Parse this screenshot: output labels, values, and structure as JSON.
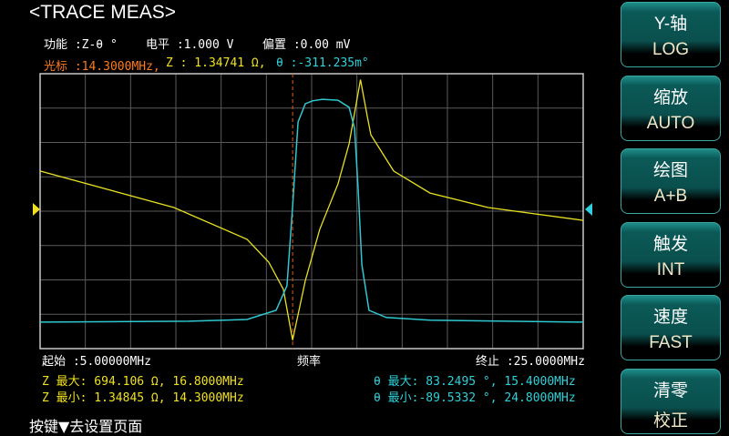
{
  "title": "<TRACE MEAS>",
  "status": {
    "function": "功能 :Z-θ °",
    "level": "电平 :1.000 V",
    "bias": "偏置 :0.00 mV"
  },
  "cursor": {
    "freq": "光标 :14.3000MHz,",
    "z": "Z : 1.34741 Ω,",
    "theta": "θ :-311.235m°"
  },
  "axis": {
    "start": "起始 :5.00000MHz",
    "label": "频率",
    "stop": "终止 :25.0000MHz"
  },
  "stats": {
    "z_max": "Z 最大: 694.106 Ω, 16.8000MHz",
    "z_min": "Z 最小: 1.34845 Ω, 14.3000MHz",
    "theta_max": "θ 最大: 83.2495 °, 15.4000MHz",
    "theta_min": "θ 最小:-89.5332 °, 24.8000MHz"
  },
  "hint": "按键▼去设置页面",
  "buttons": [
    {
      "label": "Y-轴",
      "value": "LOG"
    },
    {
      "label": "缩放",
      "value": "AUTO"
    },
    {
      "label": "绘图",
      "value": "A+B"
    },
    {
      "label": "触发",
      "value": "INT"
    },
    {
      "label": "速度",
      "value": "FAST"
    },
    {
      "label": "清零",
      "value": "校正"
    }
  ],
  "colors": {
    "z": "#e8e020",
    "theta": "#30c8d0",
    "cursor": "#e05818",
    "grid": "#5a5a5a",
    "status": "#ffffff",
    "cursor_freq": "#ff7a1a"
  },
  "chart_data": {
    "type": "line",
    "x_unit": "MHz",
    "xlim": [
      5,
      25
    ],
    "cursor_x": 14.3,
    "grid": true,
    "series": [
      {
        "name": "Z",
        "scale": "log",
        "ylim": [
          1.1,
          800
        ],
        "x": [
          5,
          9.93,
          12.62,
          13.42,
          13.96,
          14.3,
          14.77,
          15.3,
          15.97,
          16.38,
          16.8,
          17.05,
          17.18,
          18.02,
          19.36,
          21.5,
          25
        ],
        "y": [
          77.6,
          32.4,
          15.1,
          8.75,
          4.54,
          1.35,
          5.64,
          19.2,
          57,
          149,
          694,
          286,
          185,
          77.6,
          45.8,
          32.4,
          23.8
        ]
      },
      {
        "name": "θ",
        "scale": "linear",
        "ylim": [
          -110,
          103
        ],
        "x": [
          5,
          10.47,
          12.62,
          13.69,
          14.09,
          14.3,
          14.5,
          14.77,
          15.03,
          15.4,
          15.97,
          16.38,
          16.58,
          16.71,
          16.85,
          17.11,
          17.75,
          19.36,
          24.8,
          25
        ],
        "y": [
          -89.5,
          -88.8,
          -87.4,
          -80.3,
          -61.3,
          0,
          65.6,
          79.8,
          82,
          83.2,
          82.5,
          77,
          60.7,
          14,
          -45,
          -80.3,
          -85.9,
          -88,
          -89.5,
          -89.4
        ]
      }
    ]
  }
}
